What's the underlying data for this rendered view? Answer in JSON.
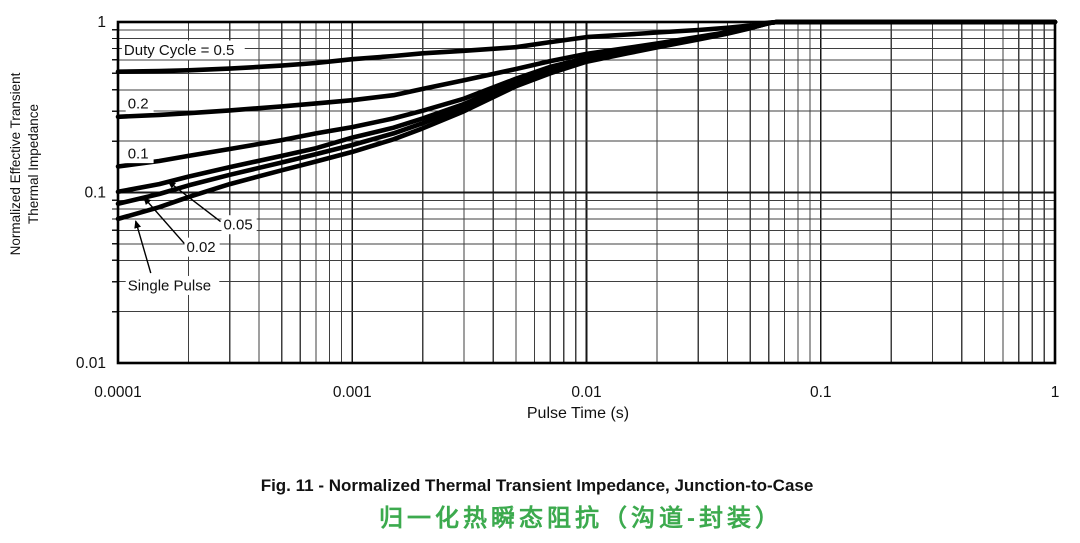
{
  "caption": {
    "figure": "Fig. 11 - Normalized Thermal Transient Impedance, Junction-to-Case",
    "chinese": "归一化热瞬态阻抗（沟道-封装）"
  },
  "colors": {
    "chinese_caption": "#3caa4e",
    "curves": "#000000",
    "grid_minor": "#3f3f3f",
    "grid_major": "#161616",
    "frame": "#000000",
    "text": "#111111"
  },
  "chart_data": {
    "type": "line",
    "title": "",
    "xlabel": "Pulse Time (s)",
    "ylabel": "Normalized Effective Transient Thermal Impedance",
    "ylabel_lines": [
      "Normalized Effective Transient",
      "Thermal Impedance"
    ],
    "x_axis": {
      "scale": "log",
      "min": 0.0001,
      "max": 1,
      "ticks": [
        {
          "value": 0.0001,
          "label": "0.0001"
        },
        {
          "value": 0.001,
          "label": "0.001"
        },
        {
          "value": 0.01,
          "label": "0.01"
        },
        {
          "value": 0.1,
          "label": "0.1"
        },
        {
          "value": 1,
          "label": "1"
        }
      ]
    },
    "y_axis": {
      "scale": "log",
      "min": 0.01,
      "max": 1,
      "ticks": [
        {
          "value": 1,
          "label": "1"
        },
        {
          "value": 0.1,
          "label": "0.1"
        },
        {
          "value": 0.01,
          "label": "0.01"
        }
      ]
    },
    "grid": {
      "show": true,
      "minor_divisions": true
    },
    "legend_position": "inline-annotations",
    "x_shared": [
      0.0001,
      0.00015,
      0.0002,
      0.0003,
      0.0005,
      0.0007,
      0.001,
      0.0015,
      0.002,
      0.003,
      0.005,
      0.007,
      0.01,
      0.015,
      0.02,
      0.03,
      0.04,
      0.05,
      0.06,
      0.065,
      0.08,
      0.1,
      0.2,
      0.5,
      1
    ],
    "series": [
      {
        "name": "Duty Cycle = 0.5",
        "duty_cycle": 0.5,
        "y": [
          0.511,
          0.515,
          0.521,
          0.533,
          0.555,
          0.575,
          0.605,
          0.632,
          0.655,
          0.678,
          0.712,
          0.762,
          0.815,
          0.845,
          0.868,
          0.898,
          0.925,
          0.952,
          0.99,
          1,
          1,
          1,
          1,
          1,
          1
        ]
      },
      {
        "name": "0.2",
        "duty_cycle": 0.2,
        "y": [
          0.278,
          0.285,
          0.292,
          0.303,
          0.32,
          0.333,
          0.348,
          0.372,
          0.405,
          0.455,
          0.53,
          0.59,
          0.65,
          0.705,
          0.748,
          0.818,
          0.872,
          0.93,
          0.987,
          1,
          1,
          1,
          1,
          1,
          1
        ]
      },
      {
        "name": "0.1",
        "duty_cycle": 0.1,
        "y": [
          0.142,
          0.153,
          0.164,
          0.18,
          0.203,
          0.222,
          0.242,
          0.272,
          0.302,
          0.355,
          0.465,
          0.545,
          0.615,
          0.678,
          0.728,
          0.805,
          0.865,
          0.927,
          0.986,
          1,
          1,
          1,
          1,
          1,
          1
        ]
      },
      {
        "name": "0.05",
        "duty_cycle": 0.05,
        "y": [
          0.101,
          0.112,
          0.124,
          0.141,
          0.164,
          0.182,
          0.21,
          0.24,
          0.272,
          0.33,
          0.45,
          0.53,
          0.605,
          0.67,
          0.722,
          0.8,
          0.862,
          0.925,
          0.985,
          1,
          1,
          1,
          1,
          1,
          1
        ]
      },
      {
        "name": "0.02",
        "duty_cycle": 0.02,
        "y": [
          0.086,
          0.098,
          0.11,
          0.127,
          0.15,
          0.168,
          0.19,
          0.222,
          0.255,
          0.315,
          0.435,
          0.515,
          0.595,
          0.662,
          0.715,
          0.795,
          0.858,
          0.922,
          0.985,
          1,
          1,
          1,
          1,
          1,
          1
        ]
      },
      {
        "name": "Single Pulse",
        "duty_cycle": null,
        "y": [
          0.07,
          0.082,
          0.094,
          0.112,
          0.135,
          0.152,
          0.173,
          0.205,
          0.238,
          0.3,
          0.42,
          0.5,
          0.585,
          0.655,
          0.71,
          0.79,
          0.855,
          0.92,
          0.985,
          1,
          1,
          1,
          1,
          1,
          1
        ]
      }
    ],
    "annotations": [
      {
        "text": "Duty Cycle = 0.5",
        "t": 0.000106,
        "z": 0.685
      },
      {
        "text": "0.2",
        "t": 0.00011,
        "z": 0.333
      },
      {
        "text": "0.1",
        "t": 0.00011,
        "z": 0.169
      },
      {
        "text": "0.05",
        "t": 0.000282,
        "z": 0.0647
      },
      {
        "text": "0.02",
        "t": 0.000196,
        "z": 0.0478
      },
      {
        "text": "Single Pulse",
        "t": 0.00011,
        "z": 0.0285
      }
    ],
    "arrows": [
      {
        "from_t": 0.000274,
        "from_z": 0.0675,
        "to_t": 0.000164,
        "to_z": 0.116
      },
      {
        "from_t": 0.000195,
        "from_z": 0.049,
        "to_t": 0.000129,
        "to_z": 0.0935
      },
      {
        "from_t": 0.000138,
        "from_z": 0.0337,
        "to_t": 0.000119,
        "to_z": 0.068
      }
    ]
  }
}
